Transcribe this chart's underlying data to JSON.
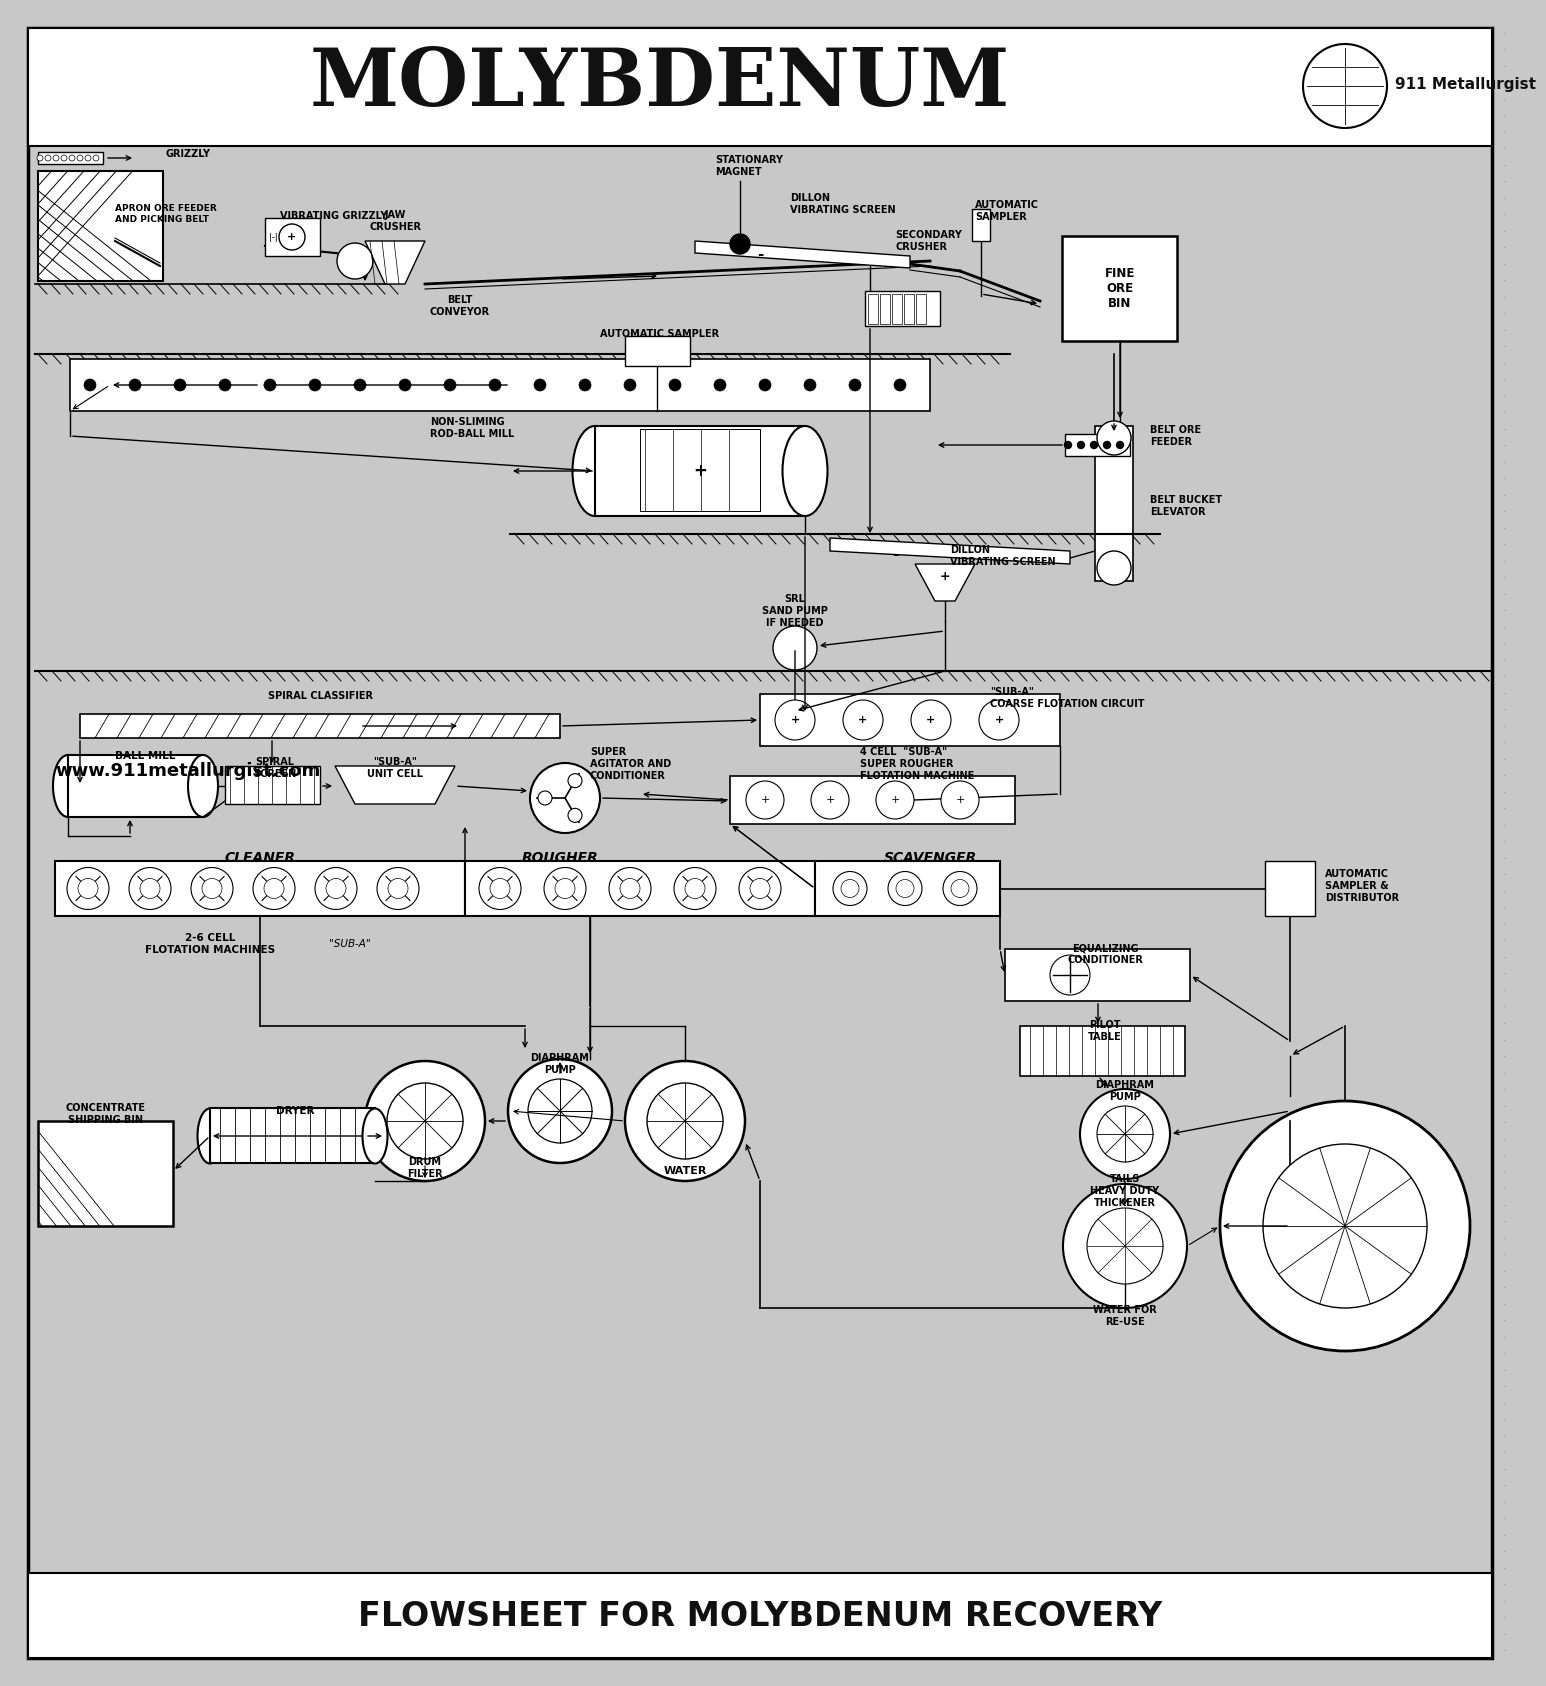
{
  "title": "MOLYBDENUM",
  "subtitle": "FLOWSHEET FOR MOLYBDENUM RECOVERY",
  "watermark": "www.911metallurgist.com",
  "logo_text": "911 Metallurgist",
  "bg_color": "#c8c8c8",
  "dot_color": "#b0b0b0",
  "text_color": "#111111",
  "title_fontsize": 58,
  "subtitle_fontsize": 24,
  "fig_w": 15.0,
  "fig_h": 16.66,
  "xlim": [
    0,
    15
  ],
  "ylim": [
    0,
    16.66
  ]
}
